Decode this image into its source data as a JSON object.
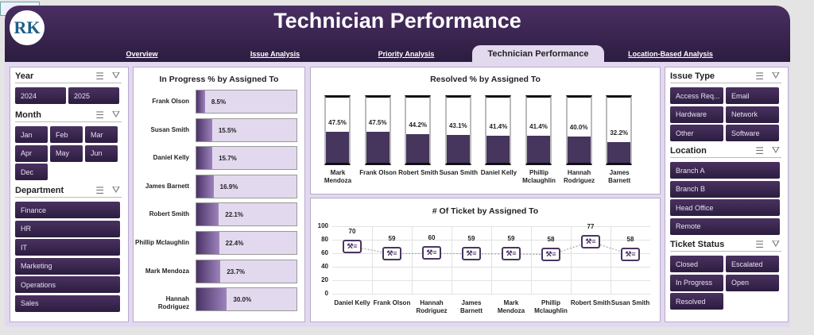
{
  "header": {
    "title": "Technician Performance",
    "logo_text": "RK"
  },
  "tabs": [
    {
      "label": "Overview",
      "active": false
    },
    {
      "label": "Issue Analysis",
      "active": false
    },
    {
      "label": "Priority Analysis",
      "active": false
    },
    {
      "label": "Technician Performance",
      "active": true
    },
    {
      "label": "Location-Based Analysis",
      "active": false
    }
  ],
  "slicers_left": [
    {
      "title": "Year",
      "items": [
        "2024",
        "2025"
      ]
    },
    {
      "title": "Month",
      "items": [
        "Jan",
        "Feb",
        "Mar",
        "Apr",
        "May",
        "Jun",
        "Dec"
      ]
    },
    {
      "title": "Department",
      "items": [
        "Finance",
        "HR",
        "IT",
        "Marketing",
        "Operations",
        "Sales"
      ]
    }
  ],
  "slicers_right": [
    {
      "title": "Issue Type",
      "items": [
        "Access Req...",
        "Email",
        "Hardware",
        "Network",
        "Other",
        "Software"
      ]
    },
    {
      "title": "Location",
      "items": [
        "Branch A",
        "Branch B",
        "Head Office",
        "Remote"
      ]
    },
    {
      "title": "Ticket Status",
      "items": [
        "Closed",
        "Escalated",
        "In Progress",
        "Open",
        "Resolved"
      ]
    }
  ],
  "icons": {
    "multi_select": "multi-select-icon",
    "clear_filter": "clear-filter-icon",
    "ticket": "ticket-wrench-icon"
  },
  "colors": {
    "header": "#3a2652",
    "accent": "#3d2b55",
    "bar_bg": "#e2d9ee"
  },
  "chart_data": [
    {
      "type": "bar",
      "orientation": "horizontal",
      "title": "In Progress % by Assigned To",
      "categories": [
        "Frank Olson",
        "Susan Smith",
        "Daniel Kelly",
        "James Barnett",
        "Robert Smith",
        "Phillip Mclaughlin",
        "Mark Mendoza",
        "Hannah Rodriguez"
      ],
      "values": [
        8.5,
        15.5,
        15.7,
        16.9,
        22.1,
        22.4,
        23.7,
        30.0
      ],
      "labels": [
        "8.5%",
        "15.5%",
        "15.7%",
        "16.9%",
        "22.1%",
        "22.4%",
        "23.7%",
        "30.0%"
      ],
      "xlim": [
        0,
        100
      ]
    },
    {
      "type": "bar",
      "orientation": "vertical",
      "style": "cylinder",
      "title": "Resolved % by Assigned To",
      "categories": [
        "Mark Mendoza",
        "Frank Olson",
        "Robert Smith",
        "Susan Smith",
        "Daniel Kelly",
        "Phillip Mclaughlin",
        "Hannah Rodriguez",
        "James Barnett"
      ],
      "values": [
        47.5,
        47.5,
        44.2,
        43.1,
        41.4,
        41.4,
        40.0,
        32.2
      ],
      "labels": [
        "47.5%",
        "47.5%",
        "44.2%",
        "43.1%",
        "41.4%",
        "41.4%",
        "40.0%",
        "32.2%"
      ],
      "ylim": [
        0,
        100
      ]
    },
    {
      "type": "line",
      "markers": "ticket-icon",
      "title": "# Of Ticket by Assigned To",
      "categories": [
        "Daniel Kelly",
        "Frank Olson",
        "Hannah Rodriguez",
        "James Barnett",
        "Mark Mendoza",
        "Phillip Mclaughlin",
        "Robert Smith",
        "Susan Smith"
      ],
      "values": [
        70,
        59,
        60,
        59,
        59,
        58,
        77,
        58
      ],
      "ylim": [
        0,
        100
      ],
      "yticks": [
        "0",
        "20",
        "40",
        "60",
        "80",
        "100"
      ],
      "grid": true
    }
  ]
}
